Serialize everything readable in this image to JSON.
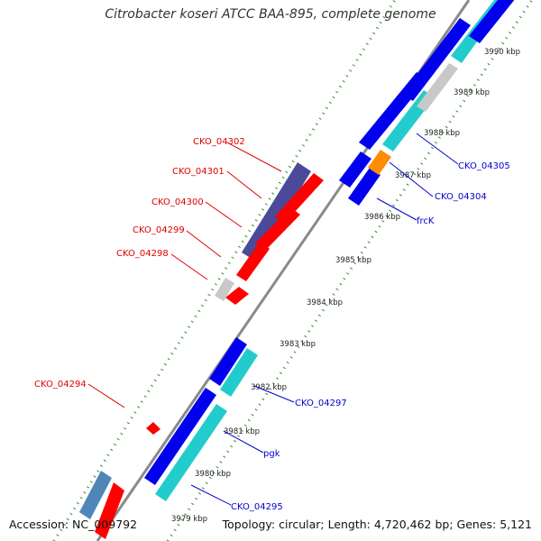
{
  "title": "Citrobacter koseri ATCC BAA-895, complete genome",
  "footer": {
    "accession": "Accession: NC_009792",
    "summary": "Topology: circular; Length: 4,720,462 bp; Genes: 5,121"
  },
  "colors": {
    "backbone": "#8a8a8a",
    "ticks": "#2e8b2e",
    "red": "#ff0000",
    "blue": "#0000ee",
    "cyan": "#22cccc",
    "darkpurple": "#4b4a99",
    "gray": "#c8c8c8",
    "orange": "#ff8c00",
    "steelblue": "#4f86b8"
  },
  "kbp_labels": [
    "3979 kbp",
    "3980 kbp",
    "3981 kbp",
    "3982 kbp",
    "3983 kbp",
    "3984 kbp",
    "3985 kbp",
    "3986 kbp",
    "3987 kbp",
    "3988 kbp",
    "3989 kbp",
    "3990 kbp"
  ],
  "red_labels": [
    "CKO_04302",
    "CKO_04301",
    "CKO_04300",
    "CKO_04299",
    "CKO_04298",
    "CKO_04294"
  ],
  "blue_labels": [
    "CKO_04305",
    "CKO_04304",
    "frcK",
    "CKO_04297",
    "pgk",
    "CKO_04295"
  ]
}
